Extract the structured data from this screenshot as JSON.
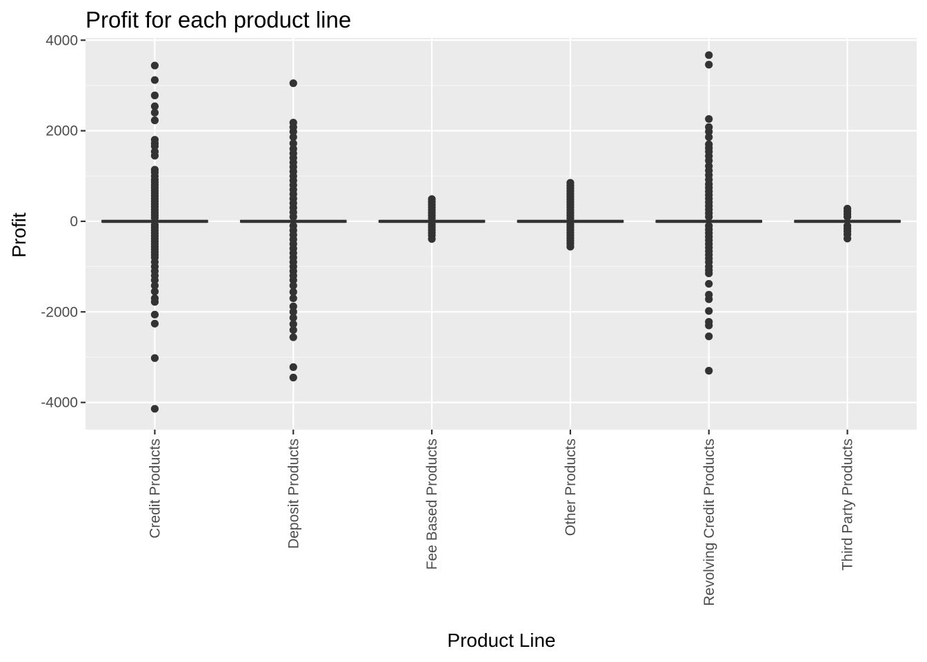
{
  "chart_data": {
    "type": "boxplot",
    "title": "Profit for each product line",
    "xlabel": "Product Line",
    "ylabel": "Profit",
    "ylim": [
      -4600,
      4050
    ],
    "yticks": [
      -4000,
      -2000,
      0,
      2000,
      4000
    ],
    "ytick_labels": [
      "-4000",
      "-2000",
      "0",
      "2000",
      "4000"
    ],
    "grid": true,
    "categories": [
      "Credit Products",
      "Deposit Products",
      "Fee Based Products",
      "Other Products",
      "Revolving Credit Products",
      "Third Party Products"
    ],
    "boxes": [
      {
        "q1": 0,
        "median": 0,
        "q3": 0,
        "whisker_low": 0,
        "whisker_high": 0,
        "outliers": [
          3440,
          3120,
          2780,
          2540,
          2400,
          2230,
          1800,
          1720,
          1660,
          1540,
          1450,
          1140,
          1080,
          1000,
          920,
          860,
          800,
          740,
          680,
          620,
          560,
          500,
          440,
          380,
          320,
          260,
          200,
          140,
          80,
          -80,
          -140,
          -200,
          -260,
          -320,
          -380,
          -440,
          -500,
          -560,
          -620,
          -680,
          -740,
          -800,
          -900,
          -1000,
          -1100,
          -1200,
          -1300,
          -1420,
          -1550,
          -1700,
          -1780,
          -2060,
          -2260,
          -3020,
          -4140
        ]
      },
      {
        "q1": 0,
        "median": 0,
        "q3": 0,
        "whisker_low": 0,
        "whisker_high": 0,
        "outliers": [
          3050,
          2180,
          2080,
          1980,
          1860,
          1720,
          1600,
          1500,
          1400,
          1300,
          1200,
          1100,
          1000,
          900,
          800,
          700,
          600,
          500,
          400,
          300,
          200,
          100,
          -100,
          -200,
          -300,
          -400,
          -500,
          -600,
          -700,
          -800,
          -900,
          -1000,
          -1100,
          -1200,
          -1300,
          -1420,
          -1560,
          -1700,
          -1880,
          -2000,
          -2130,
          -2270,
          -2400,
          -2560,
          -3220,
          -3450
        ]
      },
      {
        "q1": 0,
        "median": 0,
        "q3": 0,
        "whisker_low": 0,
        "whisker_high": 0,
        "outliers": [
          490,
          430,
          370,
          310,
          250,
          190,
          130,
          70,
          -70,
          -130,
          -190,
          -250,
          -310,
          -390
        ]
      },
      {
        "q1": 0,
        "median": 0,
        "q3": 0,
        "whisker_low": 0,
        "whisker_high": 0,
        "outliers": [
          850,
          790,
          730,
          670,
          610,
          550,
          490,
          430,
          370,
          310,
          250,
          190,
          130,
          70,
          -70,
          -130,
          -190,
          -250,
          -310,
          -370,
          -430,
          -490,
          -560
        ]
      },
      {
        "q1": 0,
        "median": 0,
        "q3": 0,
        "whisker_low": 0,
        "whisker_high": 0,
        "outliers": [
          3670,
          3460,
          2260,
          2080,
          1980,
          1860,
          1700,
          1620,
          1540,
          1440,
          1340,
          1220,
          1120,
          1020,
          920,
          820,
          740,
          660,
          580,
          500,
          420,
          340,
          260,
          180,
          100,
          -100,
          -180,
          -260,
          -340,
          -420,
          -500,
          -580,
          -660,
          -740,
          -820,
          -900,
          -1000,
          -1080,
          -1150,
          -1380,
          -1620,
          -1720,
          -1980,
          -2220,
          -2300,
          -2540,
          -3300
        ]
      },
      {
        "q1": 0,
        "median": 0,
        "q3": 0,
        "whisker_low": 0,
        "whisker_high": 0,
        "outliers": [
          280,
          220,
          160,
          100,
          -100,
          -160,
          -220,
          -290,
          -380
        ]
      }
    ],
    "colors": {
      "panel": "#ebebeb",
      "grid_major": "#ffffff",
      "grid_minor": "#f5f5f5",
      "box": "#333333",
      "tick": "#333333",
      "text": "#4d4d4d"
    }
  }
}
